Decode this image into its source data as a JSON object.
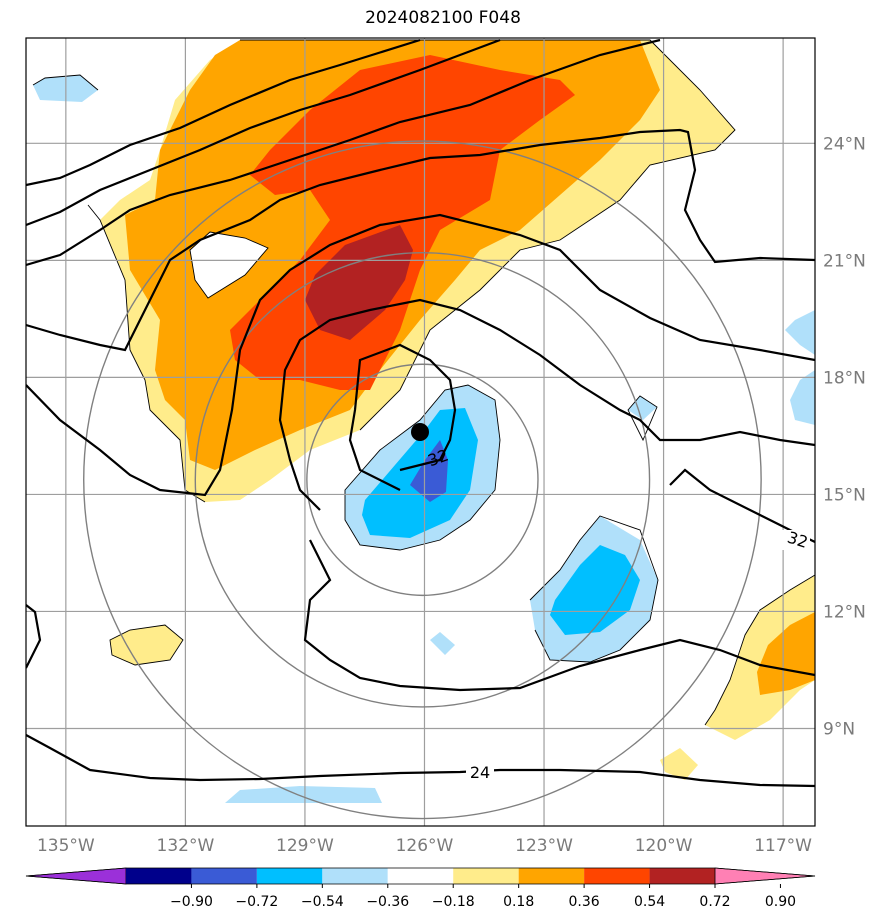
{
  "title": "2024082100 F048",
  "chart_data": {
    "type": "map",
    "projection": "lat-lon",
    "lon_range": [
      -136,
      -116.2
    ],
    "lat_range": [
      6.5,
      26.7
    ],
    "lon_ticks": [
      {
        "lon": -135,
        "label": "135°W"
      },
      {
        "lon": -132,
        "label": "132°W"
      },
      {
        "lon": -129,
        "label": "129°W"
      },
      {
        "lon": -126,
        "label": "126°W"
      },
      {
        "lon": -123,
        "label": "123°W"
      },
      {
        "lon": -120,
        "label": "120°W"
      },
      {
        "lon": -117,
        "label": "117°W"
      }
    ],
    "lat_ticks": [
      {
        "lat": 24,
        "label": "24°N"
      },
      {
        "lat": 21,
        "label": "21°N"
      },
      {
        "lat": 18,
        "label": "18°N"
      },
      {
        "lat": 15,
        "label": "15°N"
      },
      {
        "lat": 12,
        "label": "12°N"
      },
      {
        "lat": 9,
        "label": "9°N"
      }
    ],
    "grid": true,
    "storm_center": {
      "lon": -125.6,
      "lat": 16.4
    },
    "range_rings_deg": [
      2.9,
      5.7,
      8.5
    ],
    "contour_labels": [
      {
        "text": "32",
        "lon": -124.7,
        "lat": 15.7
      },
      {
        "text": "32",
        "lon": -116.9,
        "lat": 13.7
      },
      {
        "text": "24",
        "lon": -124.1,
        "lat": 7.9
      }
    ],
    "colorbar": {
      "boundaries": [
        "−0.90",
        "−0.72",
        "−0.54",
        "−0.36",
        "−0.18",
        "0.18",
        "0.36",
        "0.54",
        "0.72",
        "0.90"
      ],
      "colors": [
        "#9b30d9",
        "#00008b",
        "#3a5bd6",
        "#00bfff",
        "#b0e0fa",
        "#ffffff",
        "#ffec8b",
        "#ffa500",
        "#ff4500",
        "#b22222",
        "#ff80b4"
      ],
      "extend": "both"
    }
  }
}
